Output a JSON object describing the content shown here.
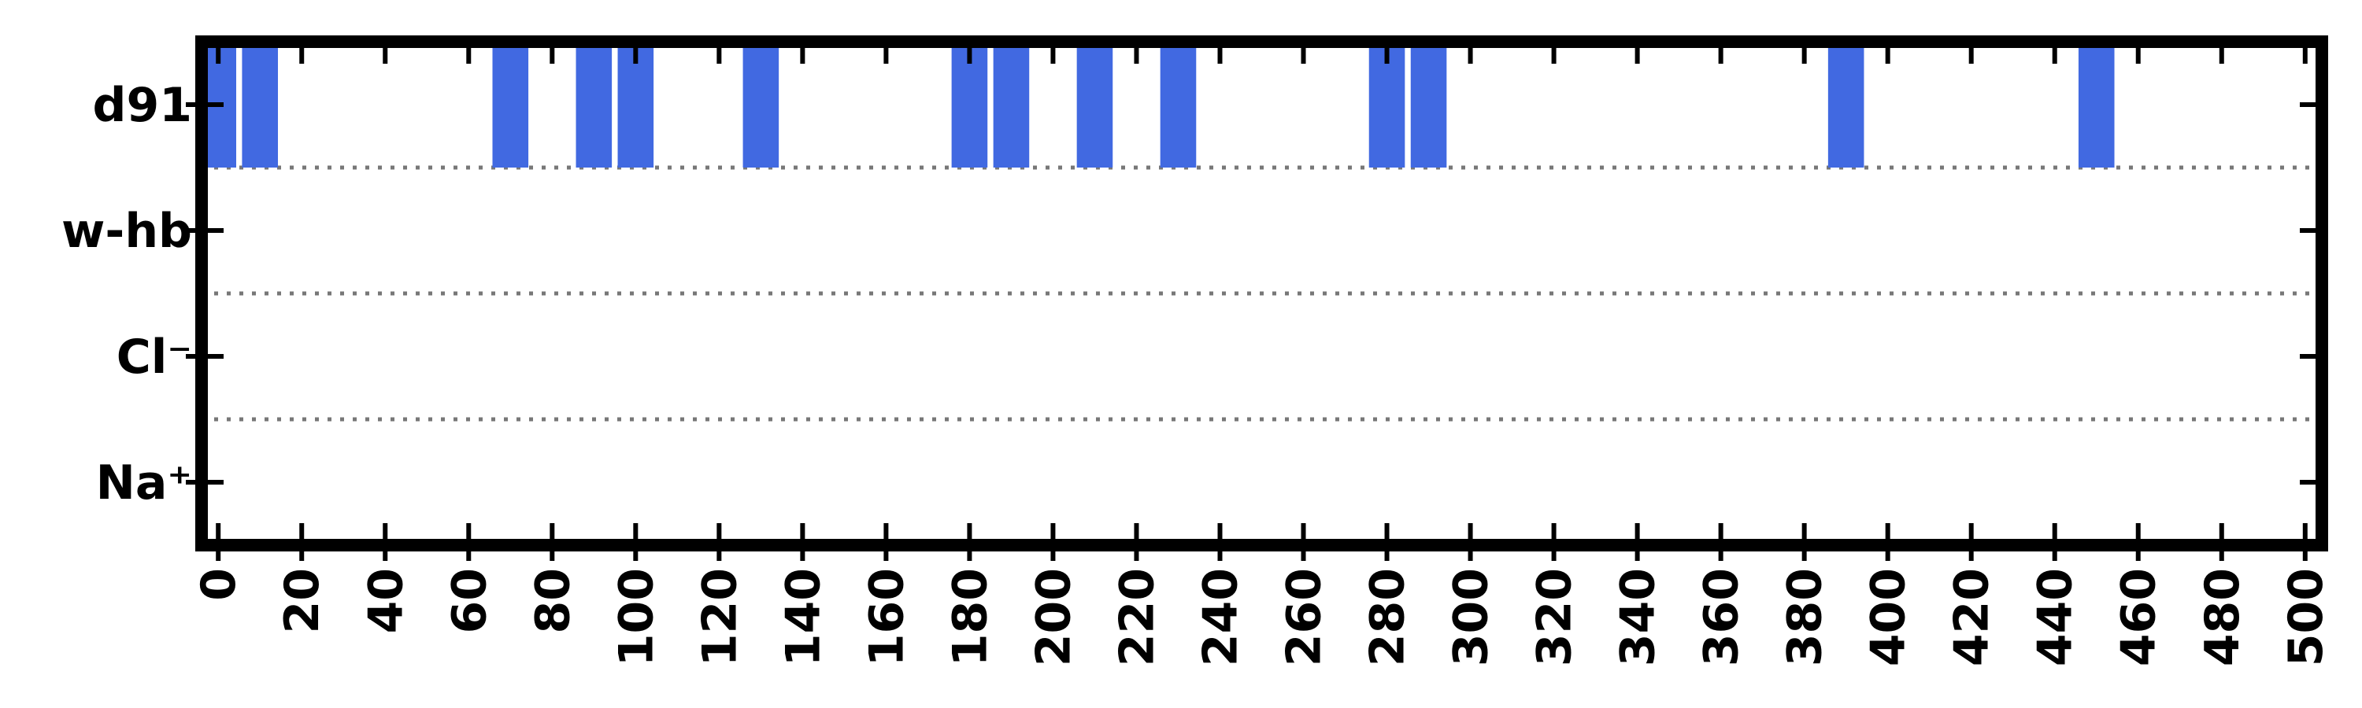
{
  "chart_data": {
    "type": "bar",
    "title": "",
    "xlabel": "",
    "ylabel": "",
    "xlim": [
      -4,
      504
    ],
    "categories": [
      "Na⁺",
      "Cl⁻",
      "w-hb",
      "d91"
    ],
    "x_ticks": [
      "0",
      "20",
      "40",
      "60",
      "80",
      "100",
      "120",
      "140",
      "160",
      "180",
      "200",
      "220",
      "240",
      "260",
      "280",
      "300",
      "320",
      "340",
      "360",
      "380",
      "400",
      "420",
      "440",
      "460",
      "480",
      "500"
    ],
    "bar_width": 8.6,
    "series": [
      {
        "category": "d91",
        "x": [
          0,
          10,
          70,
          90,
          100,
          130,
          180,
          190,
          210,
          230,
          280,
          290,
          390,
          450
        ]
      },
      {
        "category": "w-hb",
        "x": []
      },
      {
        "category": "Cl⁻",
        "x": []
      },
      {
        "category": "Na⁺",
        "x": []
      }
    ],
    "bar_color": "#4169E1",
    "separator_style": "dotted",
    "grid": false,
    "legend": "none"
  }
}
